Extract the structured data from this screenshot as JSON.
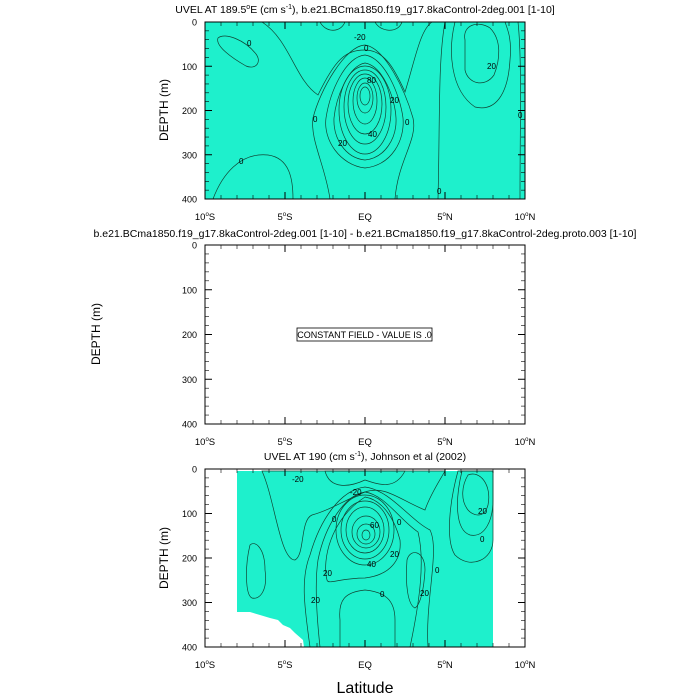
{
  "chart_data": [
    {
      "type": "heatmap",
      "subtype": "filled-contour",
      "title": "UVEL AT 189.5°E (cm s⁻¹), b.e21.BCma1850.f19_g17.8kaControl-2deg.001 [1-10]",
      "title_parts": {
        "a": "UVEL AT 189.5",
        "b": "E (cm s",
        "c": "), b.e21.BCma1850.f19_g17.8kaControl-2deg.001 [1-10]"
      },
      "ylabel": "DEPTH (m)",
      "xlim": [
        -10,
        10
      ],
      "ylim": [
        400,
        0
      ],
      "contour_labels": [
        "0",
        "-20",
        "0",
        "80",
        "20",
        "0",
        "0",
        "40",
        "20",
        "20",
        "0",
        "0",
        "0"
      ],
      "max_core": {
        "lat": 0,
        "depth": 170
      }
    },
    {
      "type": "heatmap",
      "subtype": "filled-contour",
      "title": "b.e21.BCma1850.f19_g17.8kaControl-2deg.001 [1-10] - b.e21.BCma1850.f19_g17.8kaControl-2deg.proto.003 [1-10]",
      "ylabel": "DEPTH (m)",
      "xlim": [
        -10,
        10
      ],
      "ylim": [
        400,
        0
      ],
      "annotation": "CONSTANT FIELD - VALUE IS .0"
    },
    {
      "type": "heatmap",
      "subtype": "filled-contour",
      "title": "UVEL AT 190 (cm s⁻¹), Johnson et al (2002)",
      "title_parts": {
        "a": "UVEL AT 190 (cm s",
        "c": "), Johnson et al (2002)"
      },
      "ylabel": "DEPTH (m)",
      "xlabel": "Latitude",
      "xlim": [
        -10,
        10
      ],
      "ylim": [
        400,
        0
      ],
      "contour_labels": [
        "-20",
        "-20",
        "0",
        "60",
        "0",
        "20",
        "40",
        "20",
        "0",
        "20",
        "0",
        "20",
        "0",
        "20"
      ],
      "max_core": {
        "lat": 0,
        "depth": 150
      }
    }
  ],
  "axes": {
    "x_ticks": [
      "10°S",
      "5°S",
      "EQ",
      "5°N",
      "10°N"
    ],
    "x_tick_values": [
      -10,
      -5,
      0,
      5,
      10
    ],
    "y_ticks": [
      "0",
      "100",
      "200",
      "300",
      "400"
    ],
    "y_tick_values": [
      0,
      100,
      200,
      300,
      400
    ]
  },
  "colors": {
    "deep_cyan": "#00c8ff",
    "cyan": "#33eeff",
    "background_teal": "#1ef0cc",
    "green": "#22dd33",
    "bright_green": "#55ff00",
    "yellow": "#ffff00",
    "gold": "#ffcc33",
    "orange": "#ff9933",
    "red_orange": "#ff5500"
  },
  "superscript": {
    "deg": "o",
    "minus1": "-1"
  }
}
